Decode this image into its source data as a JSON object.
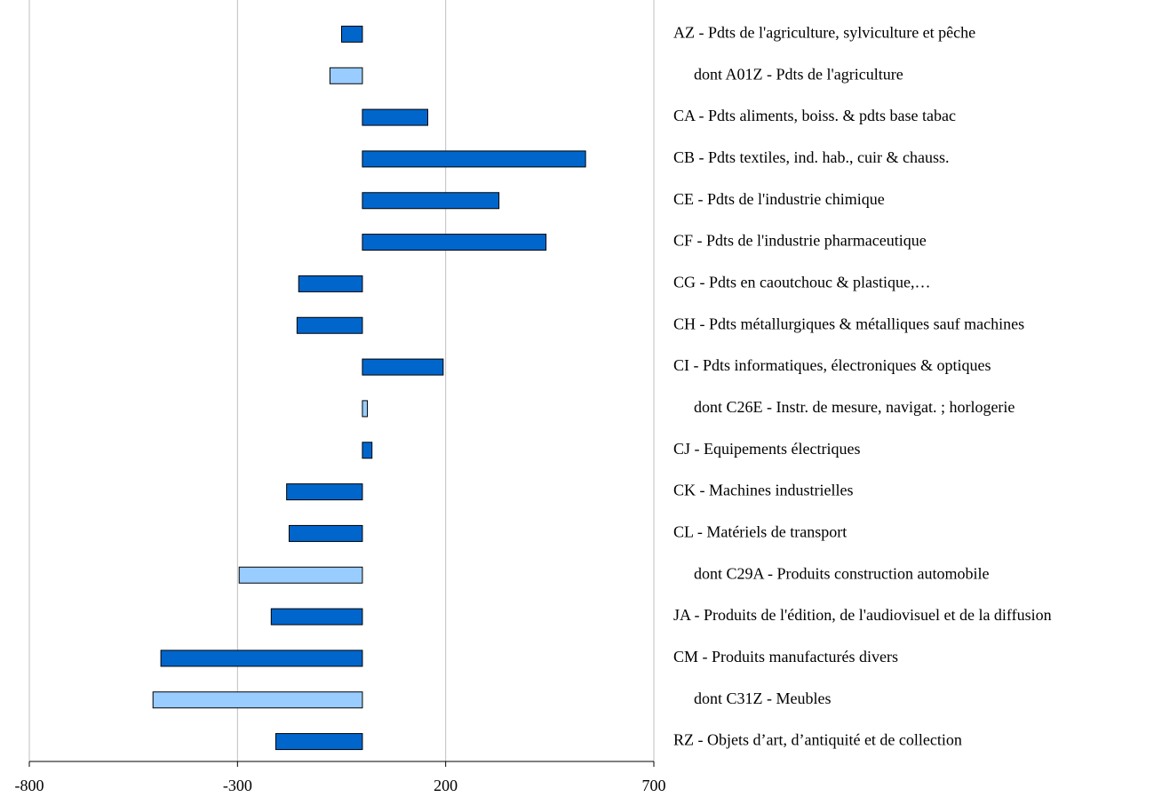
{
  "chart_data": {
    "type": "barh",
    "categories": [
      "AZ - Pdts de l'agriculture, sylviculture et pêche",
      "dont A01Z - Pdts de l'agriculture",
      "CA - Pdts aliments, boiss. & pdts base tabac",
      "CB - Pdts textiles, ind. hab., cuir & chauss.",
      "CE - Pdts de l'industrie chimique",
      "CF - Pdts de l'industrie pharmaceutique",
      "CG - Pdts en caoutchouc & plastique,…",
      "CH - Pdts métallurgiques & métalliques sauf machines",
      "CI - Pdts informatiques, électroniques & optiques",
      "dont C26E - Instr. de mesure, navigat. ; horlogerie",
      "CJ - Equipements électriques",
      "CK - Machines industrielles",
      "CL - Matériels de transport",
      "dont C29A - Produits construction automobile",
      "JA - Produits de l'édition, de l'audiovisuel et de la diffusion",
      "CM - Produits manufacturés divers",
      "dont C31Z - Meubles",
      "RZ - Objets d’art, d’antiquité  et de collection"
    ],
    "values": [
      -50,
      -78,
      157,
      536,
      328,
      441,
      -153,
      -157,
      194,
      12,
      23,
      -182,
      -176,
      -296,
      -219,
      -484,
      -503,
      -208
    ],
    "colors": [
      "#0066cc",
      "#99ccff",
      "#0066cc",
      "#0066cc",
      "#0066cc",
      "#0066cc",
      "#0066cc",
      "#0066cc",
      "#0066cc",
      "#99ccff",
      "#0066cc",
      "#0066cc",
      "#0066cc",
      "#99ccff",
      "#0066cc",
      "#0066cc",
      "#99ccff",
      "#0066cc"
    ],
    "xlim": [
      -800,
      700
    ],
    "xticks": [
      -800,
      -300,
      200,
      700
    ],
    "grid": true
  }
}
